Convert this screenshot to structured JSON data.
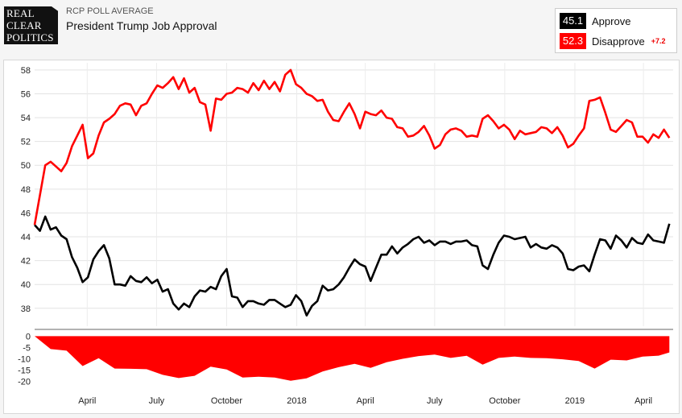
{
  "source": {
    "logo_lines": [
      "REAL",
      "CLEAR",
      "POLITICS"
    ],
    "supertitle": "RCP POLL AVERAGE",
    "title": "President Trump Job Approval"
  },
  "legend": {
    "approve": {
      "value": "45.1",
      "label": "Approve",
      "color": "#000000"
    },
    "disapprove": {
      "value": "52.3",
      "label": "Disapprove",
      "color": "#ff0000"
    },
    "spread": "+7.2"
  },
  "chart_data": [
    {
      "type": "line",
      "xlabel": "",
      "ylabel": "",
      "x_tick_labels": [
        "April",
        "July",
        "October",
        "2018",
        "April",
        "July",
        "October",
        "2019",
        "April"
      ],
      "x_tick_dates": [
        "2017-04-01",
        "2017-07-01",
        "2017-10-01",
        "2018-01-01",
        "2018-04-01",
        "2018-07-01",
        "2018-10-01",
        "2019-01-01",
        "2019-04-01"
      ],
      "x_range": [
        "2017-01-22",
        "2019-05-10"
      ],
      "y_ticks": [
        38,
        40,
        42,
        44,
        46,
        48,
        50,
        52,
        54,
        56,
        58
      ],
      "ylim": [
        36.5,
        58.6
      ],
      "grid": true,
      "series": [
        {
          "name": "Approve",
          "color": "#000000",
          "x": [
            "2017-01-22",
            "2017-01-29",
            "2017-02-05",
            "2017-02-12",
            "2017-02-19",
            "2017-02-26",
            "2017-03-05",
            "2017-03-12",
            "2017-03-19",
            "2017-03-26",
            "2017-04-02",
            "2017-04-09",
            "2017-04-16",
            "2017-04-23",
            "2017-04-30",
            "2017-05-07",
            "2017-05-14",
            "2017-05-21",
            "2017-05-28",
            "2017-06-04",
            "2017-06-11",
            "2017-06-18",
            "2017-06-25",
            "2017-07-02",
            "2017-07-09",
            "2017-07-16",
            "2017-07-23",
            "2017-07-30",
            "2017-08-06",
            "2017-08-13",
            "2017-08-20",
            "2017-08-27",
            "2017-09-03",
            "2017-09-10",
            "2017-09-17",
            "2017-09-24",
            "2017-10-01",
            "2017-10-08",
            "2017-10-15",
            "2017-10-22",
            "2017-10-29",
            "2017-11-05",
            "2017-11-12",
            "2017-11-19",
            "2017-11-26",
            "2017-12-03",
            "2017-12-10",
            "2017-12-17",
            "2017-12-24",
            "2017-12-31",
            "2018-01-07",
            "2018-01-14",
            "2018-01-21",
            "2018-01-28",
            "2018-02-04",
            "2018-02-11",
            "2018-02-18",
            "2018-02-25",
            "2018-03-04",
            "2018-03-11",
            "2018-03-18",
            "2018-03-25",
            "2018-04-01",
            "2018-04-08",
            "2018-04-15",
            "2018-04-22",
            "2018-04-29",
            "2018-05-06",
            "2018-05-13",
            "2018-05-20",
            "2018-05-27",
            "2018-06-03",
            "2018-06-10",
            "2018-06-17",
            "2018-06-24",
            "2018-07-01",
            "2018-07-08",
            "2018-07-15",
            "2018-07-22",
            "2018-07-29",
            "2018-08-05",
            "2018-08-12",
            "2018-08-19",
            "2018-08-26",
            "2018-09-02",
            "2018-09-09",
            "2018-09-16",
            "2018-09-23",
            "2018-09-30",
            "2018-10-07",
            "2018-10-14",
            "2018-10-21",
            "2018-10-28",
            "2018-11-04",
            "2018-11-11",
            "2018-11-18",
            "2018-11-25",
            "2018-12-02",
            "2018-12-09",
            "2018-12-16",
            "2018-12-23",
            "2018-12-30",
            "2019-01-06",
            "2019-01-13",
            "2019-01-20",
            "2019-01-27",
            "2019-02-03",
            "2019-02-10",
            "2019-02-17",
            "2019-02-24",
            "2019-03-03",
            "2019-03-10",
            "2019-03-17",
            "2019-03-24",
            "2019-03-31",
            "2019-04-07",
            "2019-04-14",
            "2019-04-21",
            "2019-04-28",
            "2019-05-05"
          ],
          "values": [
            45.0,
            44.5,
            45.7,
            44.6,
            44.8,
            44.1,
            43.8,
            42.3,
            41.4,
            40.2,
            40.6,
            42.1,
            42.8,
            43.3,
            42.2,
            40.0,
            40.0,
            39.9,
            40.7,
            40.3,
            40.2,
            40.6,
            40.1,
            40.4,
            39.4,
            39.6,
            38.4,
            37.9,
            38.4,
            38.1,
            39.0,
            39.5,
            39.4,
            39.8,
            39.6,
            40.7,
            41.3,
            39.0,
            38.9,
            38.1,
            38.6,
            38.6,
            38.4,
            38.3,
            38.7,
            38.7,
            38.4,
            38.1,
            38.3,
            39.1,
            38.6,
            37.4,
            38.2,
            38.6,
            39.9,
            39.5,
            39.6,
            40.0,
            40.6,
            41.4,
            42.1,
            41.7,
            41.5,
            40.3,
            41.4,
            42.5,
            42.5,
            43.2,
            42.6,
            43.1,
            43.4,
            43.8,
            44.0,
            43.5,
            43.7,
            43.3,
            43.6,
            43.6,
            43.4,
            43.6,
            43.6,
            43.7,
            43.3,
            43.2,
            41.6,
            41.3,
            42.5,
            43.5,
            44.1,
            44.0,
            43.8,
            43.9,
            44.0,
            43.1,
            43.4,
            43.1,
            43.0,
            43.3,
            43.1,
            42.6,
            41.3,
            41.2,
            41.5,
            41.6,
            41.1,
            42.5,
            43.8,
            43.7,
            43.0,
            44.1,
            43.7,
            43.1,
            43.9,
            43.5,
            43.4,
            44.2,
            43.7,
            43.6,
            43.5,
            45.1
          ]
        },
        {
          "name": "Disapprove",
          "color": "#ff0000",
          "x": [
            "2017-01-22",
            "2017-01-29",
            "2017-02-05",
            "2017-02-12",
            "2017-02-19",
            "2017-02-26",
            "2017-03-05",
            "2017-03-12",
            "2017-03-19",
            "2017-03-26",
            "2017-04-02",
            "2017-04-09",
            "2017-04-16",
            "2017-04-23",
            "2017-04-30",
            "2017-05-07",
            "2017-05-14",
            "2017-05-21",
            "2017-05-28",
            "2017-06-04",
            "2017-06-11",
            "2017-06-18",
            "2017-06-25",
            "2017-07-02",
            "2017-07-09",
            "2017-07-16",
            "2017-07-23",
            "2017-07-30",
            "2017-08-06",
            "2017-08-13",
            "2017-08-20",
            "2017-08-27",
            "2017-09-03",
            "2017-09-10",
            "2017-09-17",
            "2017-09-24",
            "2017-10-01",
            "2017-10-08",
            "2017-10-15",
            "2017-10-22",
            "2017-10-29",
            "2017-11-05",
            "2017-11-12",
            "2017-11-19",
            "2017-11-26",
            "2017-12-03",
            "2017-12-10",
            "2017-12-17",
            "2017-12-24",
            "2017-12-31",
            "2018-01-07",
            "2018-01-14",
            "2018-01-21",
            "2018-01-28",
            "2018-02-04",
            "2018-02-11",
            "2018-02-18",
            "2018-02-25",
            "2018-03-04",
            "2018-03-11",
            "2018-03-18",
            "2018-03-25",
            "2018-04-01",
            "2018-04-08",
            "2018-04-15",
            "2018-04-22",
            "2018-04-29",
            "2018-05-06",
            "2018-05-13",
            "2018-05-20",
            "2018-05-27",
            "2018-06-03",
            "2018-06-10",
            "2018-06-17",
            "2018-06-24",
            "2018-07-01",
            "2018-07-08",
            "2018-07-15",
            "2018-07-22",
            "2018-07-29",
            "2018-08-05",
            "2018-08-12",
            "2018-08-19",
            "2018-08-26",
            "2018-09-02",
            "2018-09-09",
            "2018-09-16",
            "2018-09-23",
            "2018-09-30",
            "2018-10-07",
            "2018-10-14",
            "2018-10-21",
            "2018-10-28",
            "2018-11-04",
            "2018-11-11",
            "2018-11-18",
            "2018-11-25",
            "2018-12-02",
            "2018-12-09",
            "2018-12-16",
            "2018-12-23",
            "2018-12-30",
            "2019-01-06",
            "2019-01-13",
            "2019-01-20",
            "2019-01-27",
            "2019-02-03",
            "2019-02-10",
            "2019-02-17",
            "2019-02-24",
            "2019-03-03",
            "2019-03-10",
            "2019-03-17",
            "2019-03-24",
            "2019-03-31",
            "2019-04-07",
            "2019-04-14",
            "2019-04-21",
            "2019-04-28",
            "2019-05-05"
          ],
          "values": [
            45.0,
            47.5,
            50.0,
            50.3,
            49.9,
            49.5,
            50.2,
            51.6,
            52.5,
            53.4,
            50.6,
            51.0,
            52.5,
            53.6,
            53.9,
            54.3,
            55.0,
            55.2,
            55.1,
            54.2,
            55.0,
            55.2,
            56.0,
            56.7,
            56.5,
            56.9,
            57.4,
            56.4,
            57.3,
            56.1,
            56.5,
            55.3,
            55.1,
            52.9,
            55.6,
            55.5,
            56.0,
            56.1,
            56.5,
            56.4,
            56.1,
            56.9,
            56.3,
            57.1,
            56.4,
            57.0,
            56.2,
            57.6,
            58.0,
            56.8,
            56.5,
            56.0,
            55.8,
            55.4,
            55.5,
            54.5,
            53.8,
            53.7,
            54.5,
            55.2,
            54.3,
            53.1,
            54.5,
            54.3,
            54.2,
            54.6,
            54.0,
            53.9,
            53.2,
            53.1,
            52.4,
            52.5,
            52.8,
            53.3,
            52.5,
            51.4,
            51.7,
            52.6,
            53.0,
            53.1,
            52.9,
            52.4,
            52.5,
            52.4,
            53.9,
            54.2,
            53.7,
            53.1,
            53.4,
            53.0,
            52.2,
            52.9,
            52.6,
            52.7,
            52.8,
            53.2,
            53.1,
            52.7,
            53.2,
            52.5,
            51.5,
            51.8,
            52.5,
            53.1,
            55.4,
            55.5,
            55.7,
            54.4,
            53.0,
            52.8,
            53.3,
            53.8,
            53.6,
            52.4,
            52.4,
            51.9,
            52.6,
            52.3,
            53.0,
            52.3
          ]
        }
      ]
    },
    {
      "type": "area",
      "series_name": "Spread",
      "color": "#ff0000",
      "y_ticks": [
        0,
        -5,
        -10,
        -15,
        -20
      ],
      "ylim": [
        -20.5,
        0.5
      ],
      "x_range": [
        "2017-01-22",
        "2019-05-10"
      ],
      "x": [
        "2017-01-22",
        "2017-02-12",
        "2017-03-05",
        "2017-03-26",
        "2017-04-16",
        "2017-05-07",
        "2017-05-28",
        "2017-06-18",
        "2017-07-09",
        "2017-07-30",
        "2017-08-20",
        "2017-09-10",
        "2017-10-01",
        "2017-10-22",
        "2017-11-12",
        "2017-12-03",
        "2017-12-24",
        "2018-01-14",
        "2018-02-04",
        "2018-02-25",
        "2018-03-18",
        "2018-04-08",
        "2018-04-29",
        "2018-05-20",
        "2018-06-10",
        "2018-07-01",
        "2018-07-22",
        "2018-08-12",
        "2018-09-02",
        "2018-09-23",
        "2018-10-14",
        "2018-11-04",
        "2018-11-25",
        "2018-12-16",
        "2019-01-06",
        "2019-01-27",
        "2019-02-17",
        "2019-03-10",
        "2019-03-31",
        "2019-04-21",
        "2019-05-05"
      ],
      "values": [
        0.0,
        -5.7,
        -6.4,
        -13.2,
        -9.7,
        -14.3,
        -14.4,
        -14.6,
        -17.1,
        -18.5,
        -17.5,
        -13.5,
        -14.7,
        -18.3,
        -17.9,
        -18.3,
        -19.7,
        -18.6,
        -15.6,
        -13.7,
        -12.2,
        -14.0,
        -11.5,
        -10.0,
        -8.8,
        -8.1,
        -9.6,
        -8.7,
        -12.6,
        -9.6,
        -9.0,
        -9.6,
        -9.7,
        -10.2,
        -11.0,
        -14.3,
        -10.4,
        -10.7,
        -9.0,
        -8.6,
        -7.2
      ]
    }
  ]
}
